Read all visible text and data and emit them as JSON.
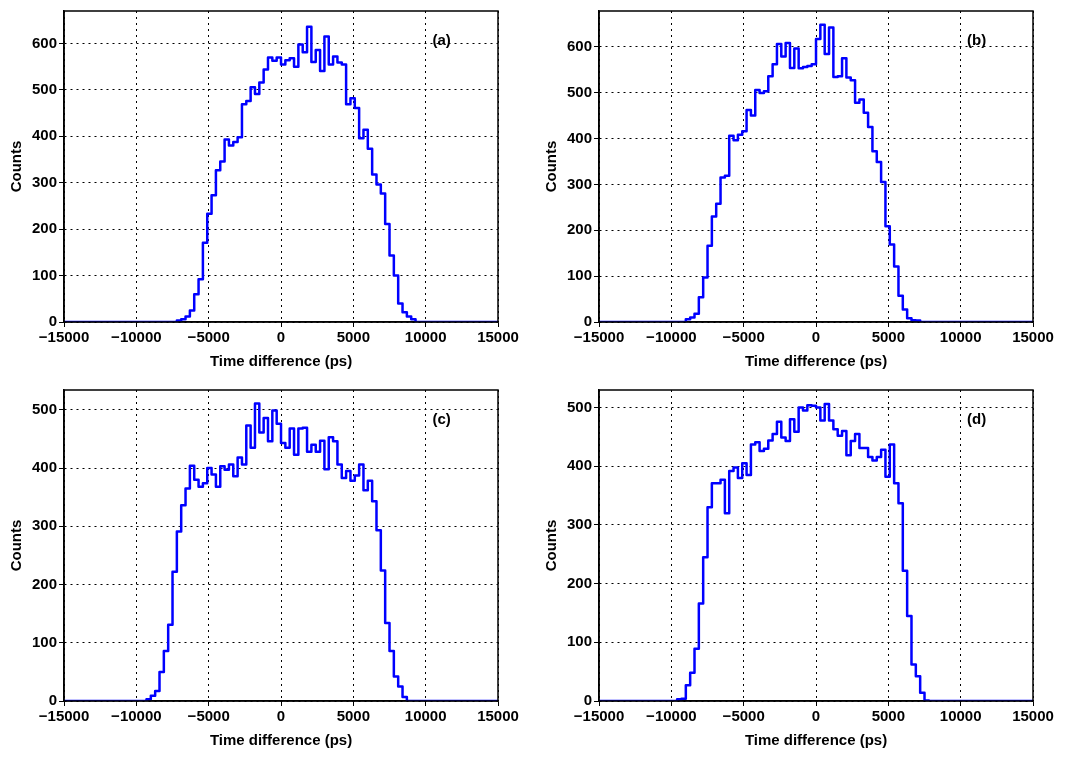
{
  "chart_data": [
    {
      "type": "histogram",
      "xlabel": "Time difference (ps)",
      "ylabel": "Counts",
      "color": "#0000ff",
      "grid": true,
      "annotations": [
        "(a)"
      ],
      "xlim": [
        -15000,
        15000
      ],
      "xticks": [
        {
          "value": -15000,
          "label": "−15000"
        },
        {
          "value": -10000,
          "label": "−10000"
        },
        {
          "value": -5000,
          "label": "−5000"
        },
        0,
        5000,
        10000,
        15000
      ],
      "ylim": [
        0,
        670
      ],
      "yticks": [
        0,
        100,
        200,
        300,
        400,
        500,
        600
      ],
      "bins": [
        -15000,
        -14700,
        -14400,
        -14100,
        -13800,
        -13500,
        -13200,
        -12900,
        -12600,
        -12300,
        -12000,
        -11700,
        -11400,
        -11100,
        -10800,
        -10500,
        -10200,
        -9900,
        -9600,
        -9300,
        -9000,
        -8700,
        -8400,
        -8100,
        -7800,
        -7500,
        -7200,
        -6900,
        -6600,
        -6300,
        -6000,
        -5700,
        -5400,
        -5100,
        -4800,
        -4500,
        -4200,
        -3900,
        -3600,
        -3300,
        -3000,
        -2700,
        -2400,
        -2100,
        -1800,
        -1500,
        -1200,
        -900,
        -600,
        -300,
        0,
        300,
        600,
        900,
        1200,
        1500,
        1800,
        2100,
        2400,
        2700,
        3000,
        3300,
        3600,
        3900,
        4200,
        4500,
        4800,
        5100,
        5400,
        5700,
        6000,
        6300,
        6600,
        6900,
        7200,
        7500,
        7800,
        8100,
        8400,
        8700,
        9000,
        9300,
        9600,
        9900,
        10200,
        10500,
        10800,
        11100,
        11400,
        11700,
        12000,
        12300,
        12600,
        12900,
        13200,
        13500,
        13800,
        14100,
        14400,
        14700,
        15000
      ],
      "values": [
        0,
        0,
        0,
        0,
        0,
        0,
        0,
        0,
        0,
        0,
        0,
        0,
        0,
        0,
        0,
        0,
        0,
        0,
        0,
        0,
        0,
        0,
        0,
        0,
        0,
        0,
        3,
        6,
        12,
        25,
        60,
        92,
        171,
        233,
        273,
        327,
        346,
        393,
        380,
        388,
        398,
        469,
        476,
        506,
        491,
        516,
        544,
        570,
        563,
        570,
        555,
        564,
        568,
        550,
        598,
        581,
        636,
        560,
        586,
        541,
        615,
        555,
        572,
        559,
        555,
        469,
        482,
        461,
        396,
        414,
        373,
        318,
        296,
        277,
        211,
        143,
        100,
        40,
        21,
        12,
        6,
        0,
        0,
        0,
        0,
        0,
        0,
        0,
        0,
        0,
        0,
        0,
        0,
        0,
        0,
        0,
        0,
        0,
        0,
        0
      ]
    },
    {
      "type": "histogram",
      "xlabel": "Time difference (ps)",
      "ylabel": "Counts",
      "color": "#0000ff",
      "grid": true,
      "annotations": [
        "(b)"
      ],
      "xlim": [
        -15000,
        15000
      ],
      "xticks": [
        {
          "value": -15000,
          "label": "−15000"
        },
        {
          "value": -10000,
          "label": "−10000"
        },
        {
          "value": -5000,
          "label": "−5000"
        },
        0,
        5000,
        10000,
        15000
      ],
      "ylim": [
        0,
        678
      ],
      "yticks": [
        0,
        100,
        200,
        300,
        400,
        500,
        600
      ],
      "bins": [
        -15000,
        -14700,
        -14400,
        -14100,
        -13800,
        -13500,
        -13200,
        -12900,
        -12600,
        -12300,
        -12000,
        -11700,
        -11400,
        -11100,
        -10800,
        -10500,
        -10200,
        -9900,
        -9600,
        -9300,
        -9000,
        -8700,
        -8400,
        -8100,
        -7800,
        -7500,
        -7200,
        -6900,
        -6600,
        -6300,
        -6000,
        -5700,
        -5400,
        -5100,
        -4800,
        -4500,
        -4200,
        -3900,
        -3600,
        -3300,
        -3000,
        -2700,
        -2400,
        -2100,
        -1800,
        -1500,
        -1200,
        -900,
        -600,
        -300,
        0,
        300,
        600,
        900,
        1200,
        1500,
        1800,
        2100,
        2400,
        2700,
        3000,
        3300,
        3600,
        3900,
        4200,
        4500,
        4800,
        5100,
        5400,
        5700,
        6000,
        6300,
        6600,
        6900,
        7200,
        7500,
        7800,
        8100,
        8400,
        8700,
        9000,
        9300,
        9600,
        9900,
        10200,
        10500,
        10800,
        11100,
        11400,
        11700,
        12000,
        12300,
        12600,
        12900,
        13200,
        13500,
        13800,
        14100,
        14400,
        14700,
        15000
      ],
      "values": [
        0,
        0,
        0,
        0,
        0,
        0,
        0,
        0,
        0,
        0,
        0,
        0,
        0,
        0,
        0,
        0,
        0,
        0,
        0,
        0,
        6,
        10,
        18,
        54,
        97,
        166,
        230,
        258,
        315,
        319,
        406,
        396,
        408,
        416,
        462,
        450,
        506,
        499,
        503,
        536,
        562,
        606,
        579,
        608,
        554,
        596,
        553,
        556,
        558,
        562,
        617,
        648,
        584,
        642,
        534,
        536,
        575,
        533,
        527,
        478,
        485,
        456,
        425,
        372,
        349,
        305,
        209,
        169,
        121,
        57,
        27,
        8,
        4,
        3,
        0,
        0,
        0,
        0,
        0,
        0,
        0,
        0,
        0,
        0,
        0,
        0,
        0,
        0,
        0,
        0,
        0,
        0,
        0,
        0,
        0,
        0,
        0,
        0,
        0,
        0
      ]
    },
    {
      "type": "histogram",
      "xlabel": "Time difference (ps)",
      "ylabel": "Counts",
      "color": "#0000ff",
      "grid": true,
      "annotations": [
        "(c)"
      ],
      "xlim": [
        -15000,
        15000
      ],
      "xticks": [
        {
          "value": -15000,
          "label": "−15000"
        },
        {
          "value": -10000,
          "label": "−10000"
        },
        {
          "value": -5000,
          "label": "−5000"
        },
        0,
        5000,
        10000,
        15000
      ],
      "ylim": [
        0,
        534
      ],
      "yticks": [
        0,
        100,
        200,
        300,
        400,
        500
      ],
      "bins": [
        -15000,
        -14700,
        -14400,
        -14100,
        -13800,
        -13500,
        -13200,
        -12900,
        -12600,
        -12300,
        -12000,
        -11700,
        -11400,
        -11100,
        -10800,
        -10500,
        -10200,
        -9900,
        -9600,
        -9300,
        -9000,
        -8700,
        -8400,
        -8100,
        -7800,
        -7500,
        -7200,
        -6900,
        -6600,
        -6300,
        -6000,
        -5700,
        -5400,
        -5100,
        -4800,
        -4500,
        -4200,
        -3900,
        -3600,
        -3300,
        -3000,
        -2700,
        -2400,
        -2100,
        -1800,
        -1500,
        -1200,
        -900,
        -600,
        -300,
        0,
        300,
        600,
        900,
        1200,
        1500,
        1800,
        2100,
        2400,
        2700,
        3000,
        3300,
        3600,
        3900,
        4200,
        4500,
        4800,
        5100,
        5400,
        5700,
        6000,
        6300,
        6600,
        6900,
        7200,
        7500,
        7800,
        8100,
        8400,
        8700,
        9000,
        9300,
        9600,
        9900,
        10200,
        10500,
        10800,
        11100,
        11400,
        11700,
        12000,
        12300,
        12600,
        12900,
        13200,
        13500,
        13800,
        14100,
        14400,
        14700,
        15000
      ],
      "values": [
        0,
        0,
        0,
        0,
        0,
        0,
        0,
        0,
        0,
        0,
        0,
        0,
        0,
        0,
        0,
        0,
        0,
        0,
        0,
        3,
        9,
        17,
        50,
        86,
        131,
        222,
        291,
        336,
        365,
        404,
        380,
        368,
        374,
        400,
        389,
        368,
        403,
        397,
        406,
        386,
        418,
        406,
        473,
        435,
        511,
        461,
        486,
        446,
        499,
        476,
        443,
        435,
        468,
        423,
        468,
        469,
        428,
        440,
        428,
        447,
        398,
        453,
        446,
        406,
        383,
        395,
        378,
        387,
        406,
        362,
        378,
        343,
        293,
        224,
        134,
        86,
        42,
        25,
        7,
        0,
        0,
        0,
        0,
        0,
        0,
        0,
        0,
        0,
        0,
        0,
        0,
        0,
        0,
        0,
        0,
        0,
        0,
        0,
        0,
        0
      ]
    },
    {
      "type": "histogram",
      "xlabel": "Time difference (ps)",
      "ylabel": "Counts",
      "color": "#0000ff",
      "grid": true,
      "annotations": [
        "(d)"
      ],
      "xlim": [
        -15000,
        15000
      ],
      "xticks": [
        {
          "value": -15000,
          "label": "−15000"
        },
        {
          "value": -10000,
          "label": "−10000"
        },
        {
          "value": -5000,
          "label": "−5000"
        },
        0,
        5000,
        10000,
        15000
      ],
      "ylim": [
        0,
        530
      ],
      "yticks": [
        0,
        100,
        200,
        300,
        400,
        500
      ],
      "bins": [
        -15000,
        -14700,
        -14400,
        -14100,
        -13800,
        -13500,
        -13200,
        -12900,
        -12600,
        -12300,
        -12000,
        -11700,
        -11400,
        -11100,
        -10800,
        -10500,
        -10200,
        -9900,
        -9600,
        -9300,
        -9000,
        -8700,
        -8400,
        -8100,
        -7800,
        -7500,
        -7200,
        -6900,
        -6600,
        -6300,
        -6000,
        -5700,
        -5400,
        -5100,
        -4800,
        -4500,
        -4200,
        -3900,
        -3600,
        -3300,
        -3000,
        -2700,
        -2400,
        -2100,
        -1800,
        -1500,
        -1200,
        -900,
        -600,
        -300,
        0,
        300,
        600,
        900,
        1200,
        1500,
        1800,
        2100,
        2400,
        2700,
        3000,
        3300,
        3600,
        3900,
        4200,
        4500,
        4800,
        5100,
        5400,
        5700,
        6000,
        6300,
        6600,
        6900,
        7200,
        7500,
        7800,
        8100,
        8400,
        8700,
        9000,
        9300,
        9600,
        9900,
        10200,
        10500,
        10800,
        11100,
        11400,
        11700,
        12000,
        12300,
        12600,
        12900,
        13200,
        13500,
        13800,
        14100,
        14400,
        14700,
        15000
      ],
      "values": [
        0,
        0,
        0,
        0,
        0,
        0,
        0,
        0,
        0,
        0,
        0,
        0,
        0,
        0,
        0,
        0,
        0,
        0,
        3,
        4,
        27,
        48,
        89,
        166,
        245,
        330,
        371,
        371,
        377,
        320,
        392,
        398,
        380,
        405,
        385,
        437,
        441,
        426,
        430,
        444,
        455,
        476,
        449,
        443,
        480,
        459,
        500,
        495,
        504,
        503,
        500,
        478,
        506,
        478,
        463,
        452,
        460,
        419,
        443,
        455,
        431,
        431,
        416,
        410,
        416,
        428,
        382,
        437,
        371,
        337,
        222,
        145,
        62,
        42,
        14,
        1,
        0,
        0,
        0,
        0,
        0,
        0,
        0,
        0,
        0,
        0,
        0,
        0,
        0,
        0,
        0,
        0,
        0,
        0,
        0,
        0,
        0,
        0,
        0,
        0
      ]
    }
  ]
}
